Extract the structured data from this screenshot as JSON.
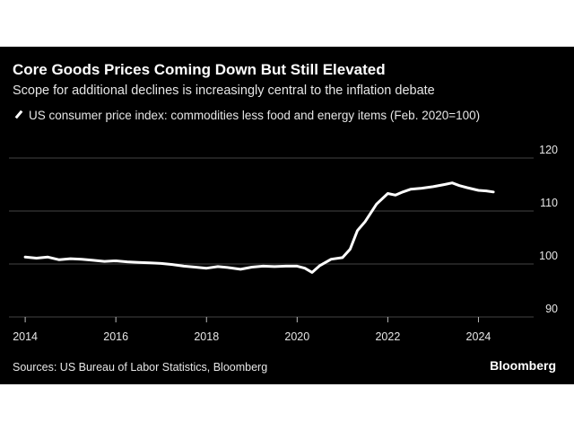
{
  "title": "Core Goods Prices Coming Down But Still Elevated",
  "subtitle": "Scope for additional declines is increasingly central to the inflation debate",
  "source": "Sources: US Bureau of Labor Statistics, Bloomberg",
  "brand": "Bloomberg",
  "colors": {
    "background": "#000000",
    "line": "#ffffff",
    "grid": "#444444",
    "text": "#e6e6e6"
  },
  "chart_data": {
    "type": "line",
    "series": [
      {
        "name": "US consumer price index: commodities less food and energy items (Feb. 2020=100)",
        "x": [
          2014.0,
          2014.25,
          2014.5,
          2014.75,
          2015.0,
          2015.25,
          2015.5,
          2015.75,
          2016.0,
          2016.25,
          2016.5,
          2016.75,
          2017.0,
          2017.25,
          2017.5,
          2017.75,
          2018.0,
          2018.25,
          2018.5,
          2018.75,
          2019.0,
          2019.25,
          2019.5,
          2019.75,
          2020.0,
          2020.17,
          2020.33,
          2020.5,
          2020.75,
          2021.0,
          2021.17,
          2021.33,
          2021.5,
          2021.75,
          2022.0,
          2022.17,
          2022.33,
          2022.5,
          2022.75,
          2023.0,
          2023.25,
          2023.42,
          2023.58,
          2023.75,
          2024.0,
          2024.17,
          2024.33
        ],
        "y": [
          101.3,
          101.1,
          101.3,
          100.8,
          101.0,
          100.9,
          100.7,
          100.5,
          100.6,
          100.4,
          100.3,
          100.2,
          100.1,
          99.9,
          99.6,
          99.4,
          99.2,
          99.5,
          99.3,
          99.0,
          99.4,
          99.6,
          99.5,
          99.6,
          99.6,
          99.2,
          98.4,
          99.7,
          100.9,
          101.2,
          102.8,
          106.3,
          108.0,
          111.3,
          113.3,
          113.0,
          113.6,
          114.1,
          114.3,
          114.6,
          115.0,
          115.3,
          114.8,
          114.4,
          113.9,
          113.8,
          113.6
        ]
      }
    ],
    "xlim": [
      2013.8,
      2025.0
    ],
    "ylim": [
      90,
      120
    ],
    "xticks": [
      2014,
      2016,
      2018,
      2020,
      2022,
      2024
    ],
    "yticks": [
      90,
      100,
      110,
      120
    ],
    "grid": "horizontal",
    "y_axis_side": "right",
    "legend_position": "top-left",
    "xlabel": "",
    "ylabel": ""
  }
}
